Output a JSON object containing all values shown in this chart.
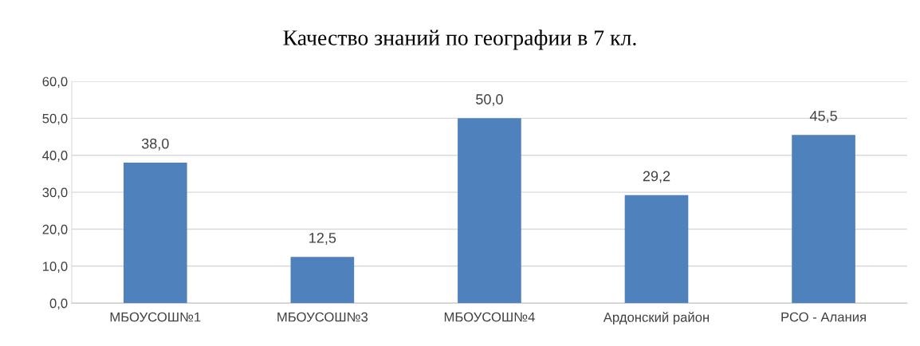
{
  "chart_data": {
    "type": "bar",
    "title": "Качество знаний по географии в 7 кл.",
    "categories": [
      "МБОУСОШ№1",
      "МБОУСОШ№3",
      "МБОУСОШ№4",
      "Ардонский район",
      "РСО - Алания"
    ],
    "values": [
      38.0,
      12.5,
      50.0,
      29.2,
      45.5
    ],
    "value_labels": [
      "38,0",
      "12,5",
      "50,0",
      "29,2",
      "45,5"
    ],
    "color": "#4f81bd",
    "ylim": [
      0,
      60
    ],
    "yticks": [
      {
        "value": 0,
        "label": "0,0"
      },
      {
        "value": 10,
        "label": "10,0"
      },
      {
        "value": 20,
        "label": "20,0"
      },
      {
        "value": 30,
        "label": "30,0"
      },
      {
        "value": 40,
        "label": "40,0"
      },
      {
        "value": 50,
        "label": "50,0"
      },
      {
        "value": 60,
        "label": "60,0"
      }
    ],
    "grid": "y"
  }
}
